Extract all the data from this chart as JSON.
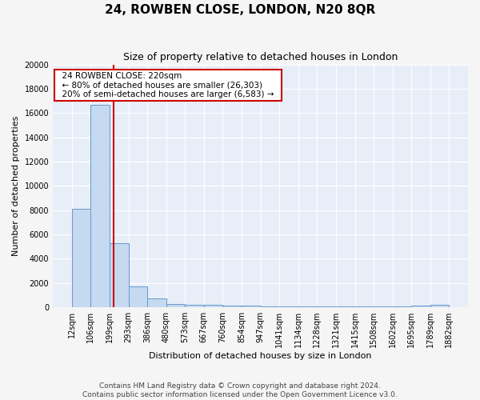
{
  "title": "24, ROWBEN CLOSE, LONDON, N20 8QR",
  "subtitle": "Size of property relative to detached houses in London",
  "xlabel": "Distribution of detached houses by size in London",
  "ylabel": "Number of detached properties",
  "heights": [
    8100,
    16700,
    5300,
    1700,
    700,
    300,
    200,
    175,
    150,
    125,
    100,
    100,
    100,
    75,
    75,
    75,
    50,
    50,
    150,
    200
  ],
  "tick_labels": [
    "12sqm",
    "106sqm",
    "199sqm",
    "293sqm",
    "386sqm",
    "480sqm",
    "573sqm",
    "667sqm",
    "760sqm",
    "854sqm",
    "947sqm",
    "1041sqm",
    "1134sqm",
    "1228sqm",
    "1321sqm",
    "1415sqm",
    "1508sqm",
    "1602sqm",
    "1695sqm",
    "1789sqm",
    "1882sqm"
  ],
  "bar_color": "#c5d9f1",
  "bar_edge_color": "#6699cc",
  "annotation_title": "24 ROWBEN CLOSE: 220sqm",
  "annotation_line1": "← 80% of detached houses are smaller (26,303)",
  "annotation_line2": "20% of semi-detached houses are larger (6,583) →",
  "annotation_box_facecolor": "#ffffff",
  "annotation_box_edgecolor": "#cc0000",
  "red_line_color": "#cc0000",
  "footer1": "Contains HM Land Registry data © Crown copyright and database right 2024.",
  "footer2": "Contains public sector information licensed under the Open Government Licence v3.0.",
  "ylim": [
    0,
    20000
  ],
  "yticks": [
    0,
    2000,
    4000,
    6000,
    8000,
    10000,
    12000,
    14000,
    16000,
    18000,
    20000
  ],
  "plot_bg_color": "#e8eef8",
  "fig_bg_color": "#f5f5f5",
  "grid_color": "#ffffff",
  "title_fontsize": 11,
  "subtitle_fontsize": 9,
  "ylabel_fontsize": 8,
  "xlabel_fontsize": 8,
  "tick_fontsize": 7,
  "annotation_fontsize": 7.5,
  "footer_fontsize": 6.5
}
